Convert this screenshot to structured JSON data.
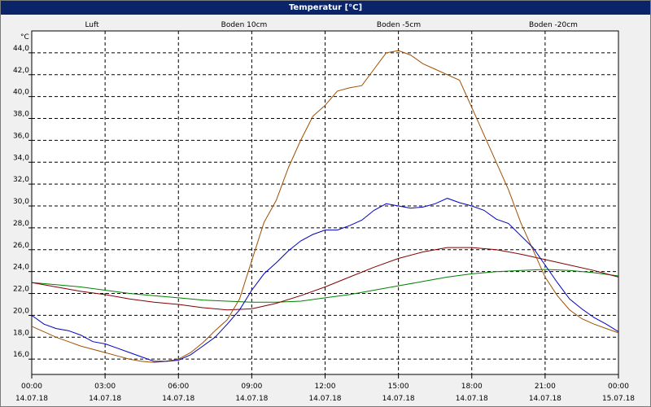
{
  "chart_data": {
    "type": "line",
    "title": "Temperatur [°C]",
    "ylabel": "°C",
    "xlabel": "",
    "ylim": [
      14.6,
      46.0
    ],
    "y_ticks": [
      "44,0",
      "42,0",
      "40,0",
      "38,0",
      "36,0",
      "34,0",
      "32,0",
      "30,0",
      "28,0",
      "26,0",
      "24,0",
      "22,0",
      "20,0",
      "18,0",
      "16,0"
    ],
    "y_tick_values": [
      44,
      42,
      40,
      38,
      36,
      34,
      32,
      30,
      28,
      26,
      24,
      22,
      20,
      18,
      16
    ],
    "x_ticks": [
      {
        "time": "00:00",
        "date": "14.07.18"
      },
      {
        "time": "03:00",
        "date": "14.07.18"
      },
      {
        "time": "06:00",
        "date": "14.07.18"
      },
      {
        "time": "09:00",
        "date": "14.07.18"
      },
      {
        "time": "12:00",
        "date": "14.07.18"
      },
      {
        "time": "15:00",
        "date": "14.07.18"
      },
      {
        "time": "18:00",
        "date": "14.07.18"
      },
      {
        "time": "21:00",
        "date": "14.07.18"
      },
      {
        "time": "00:00",
        "date": "15.07.18"
      }
    ],
    "x_range_hours": [
      0,
      24
    ],
    "grid": true,
    "series": [
      {
        "name": "Luft",
        "color": "#0000c0",
        "x": [
          0,
          0.5,
          1,
          1.5,
          2,
          2.5,
          3,
          3.5,
          4,
          4.5,
          5,
          5.5,
          6,
          6.5,
          7,
          7.5,
          8,
          8.5,
          9,
          9.5,
          10,
          10.5,
          11,
          11.5,
          12,
          12.5,
          13,
          13.5,
          14,
          14.5,
          15,
          15.5,
          16,
          16.5,
          17,
          17.5,
          18,
          18.5,
          19,
          19.5,
          20,
          20.5,
          21,
          21.5,
          22,
          22.5,
          23,
          23.5,
          24
        ],
        "values": [
          20.0,
          19.2,
          18.8,
          18.6,
          18.2,
          17.6,
          17.4,
          17.0,
          16.6,
          16.2,
          15.8,
          15.8,
          15.9,
          16.4,
          17.2,
          18.0,
          19.2,
          20.5,
          22.3,
          23.8,
          24.8,
          25.9,
          26.8,
          27.4,
          27.8,
          27.8,
          28.2,
          28.7,
          29.6,
          30.2,
          30.0,
          29.8,
          29.9,
          30.2,
          30.7,
          30.3,
          30.0,
          29.6,
          28.8,
          28.4,
          27.3,
          26.2,
          24.6,
          23.0,
          21.5,
          20.6,
          19.8,
          19.2,
          18.5
        ]
      },
      {
        "name": "Boden 10cm",
        "color": "#a05000",
        "x": [
          0,
          0.5,
          1,
          1.5,
          2,
          2.5,
          3,
          3.5,
          4,
          4.5,
          5,
          5.5,
          6,
          6.5,
          7,
          7.5,
          8,
          8.5,
          9,
          9.5,
          10,
          10.5,
          11,
          11.5,
          12,
          12.5,
          13,
          13.5,
          14,
          14.5,
          15,
          15.5,
          16,
          16.5,
          17,
          17.5,
          18,
          18.5,
          19,
          19.5,
          20,
          20.5,
          21,
          21.5,
          22,
          22.5,
          23,
          23.5,
          24
        ],
        "values": [
          19.0,
          18.5,
          18.0,
          17.6,
          17.2,
          16.9,
          16.6,
          16.3,
          16.0,
          15.8,
          15.7,
          15.8,
          16.0,
          16.6,
          17.5,
          18.6,
          19.6,
          21.5,
          25.0,
          28.5,
          30.5,
          33.5,
          36.0,
          38.2,
          39.2,
          40.5,
          40.8,
          41.0,
          42.5,
          44.0,
          44.2,
          43.8,
          43.0,
          42.5,
          42.0,
          41.5,
          39.0,
          36.5,
          34.0,
          31.5,
          28.5,
          26.0,
          23.5,
          21.8,
          20.5,
          19.7,
          19.2,
          18.8,
          18.4
        ]
      },
      {
        "name": "Boden -5cm",
        "color": "#800000",
        "x": [
          0,
          1,
          2,
          3,
          4,
          5,
          6,
          7,
          8,
          9,
          10,
          11,
          12,
          13,
          14,
          15,
          16,
          17,
          18,
          19,
          20,
          21,
          22,
          23,
          24
        ],
        "values": [
          23.0,
          22.6,
          22.2,
          21.9,
          21.5,
          21.2,
          21.0,
          20.7,
          20.5,
          20.6,
          21.1,
          21.8,
          22.6,
          23.5,
          24.4,
          25.2,
          25.8,
          26.2,
          26.2,
          26.0,
          25.6,
          25.1,
          24.6,
          24.1,
          23.5
        ]
      },
      {
        "name": "Boden -20cm",
        "color": "#008000",
        "x": [
          0,
          1,
          2,
          3,
          4,
          5,
          6,
          7,
          8,
          9,
          10,
          11,
          12,
          13,
          14,
          15,
          16,
          17,
          18,
          19,
          20,
          21,
          22,
          23,
          24
        ],
        "values": [
          23.0,
          22.8,
          22.6,
          22.3,
          22.0,
          21.8,
          21.6,
          21.4,
          21.3,
          21.2,
          21.2,
          21.3,
          21.6,
          21.9,
          22.3,
          22.7,
          23.1,
          23.5,
          23.8,
          24.0,
          24.1,
          24.2,
          24.1,
          23.9,
          23.6
        ]
      }
    ]
  }
}
